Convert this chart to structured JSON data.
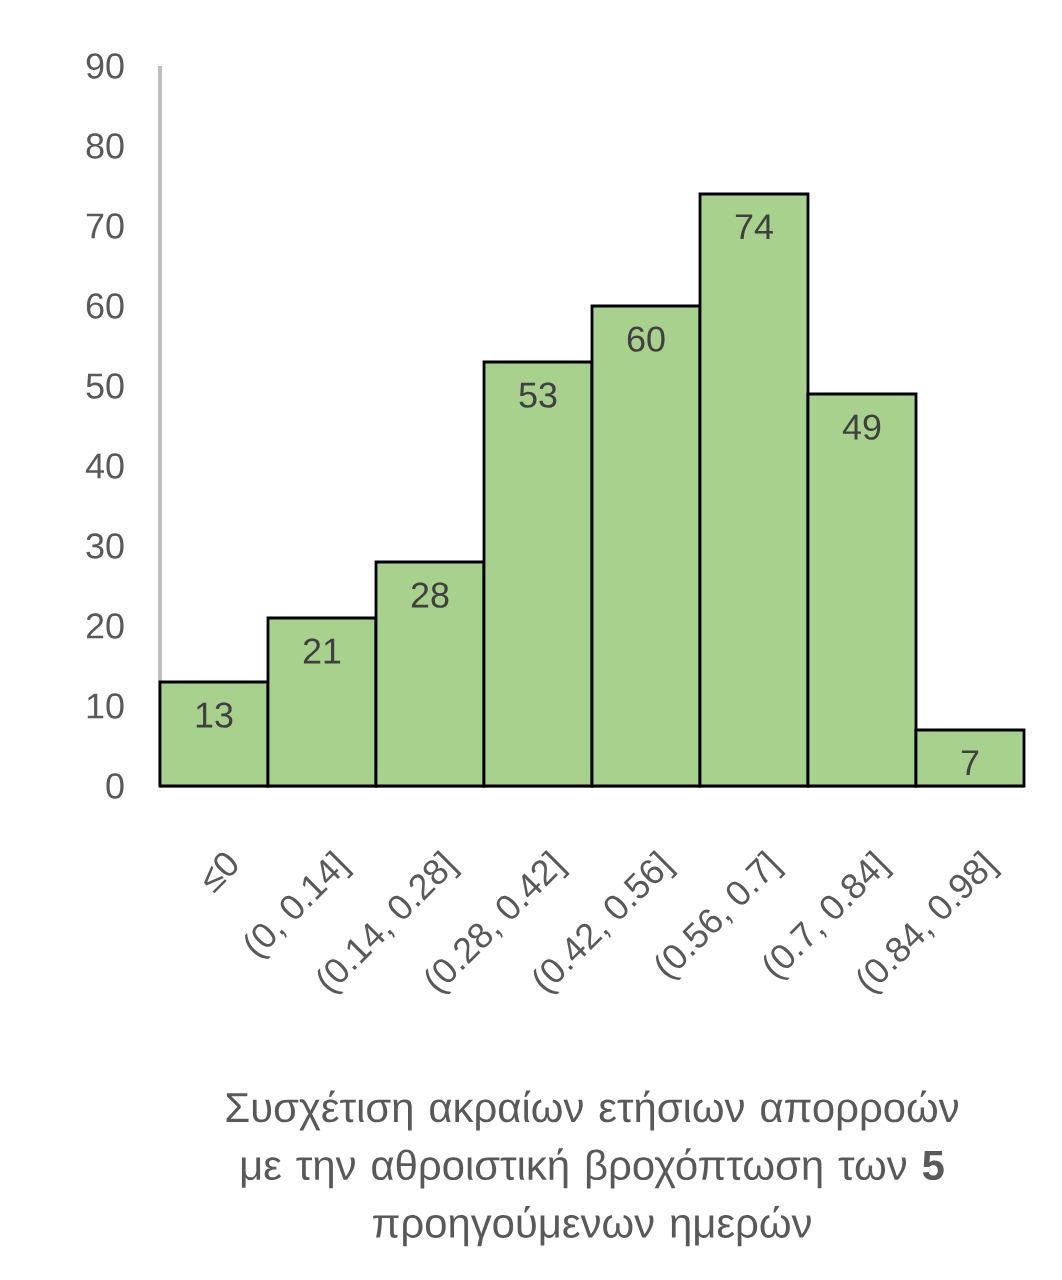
{
  "chart_data": {
    "type": "bar",
    "xlabel": "Συσχέτιση ακραίων ετήσιων απορροών με την αθροιστική βροχόπτωση των **5** προηγούμενων ημερών",
    "categories": [
      "≤0",
      "(0, 0.14]",
      "(0.14, 0.28]",
      "(0.28, 0.42]",
      "(0.42, 0.56]",
      "(0.56, 0.7]",
      "(0.7, 0.84]",
      "(0.84, 0.98]"
    ],
    "values": [
      13,
      21,
      28,
      53,
      60,
      74,
      49,
      7
    ],
    "color": "#a9d18e",
    "ylim": [
      0,
      90
    ],
    "yticks": [
      0,
      10,
      20,
      30,
      40,
      50,
      60,
      70,
      80,
      90
    ],
    "data_labels": true
  }
}
